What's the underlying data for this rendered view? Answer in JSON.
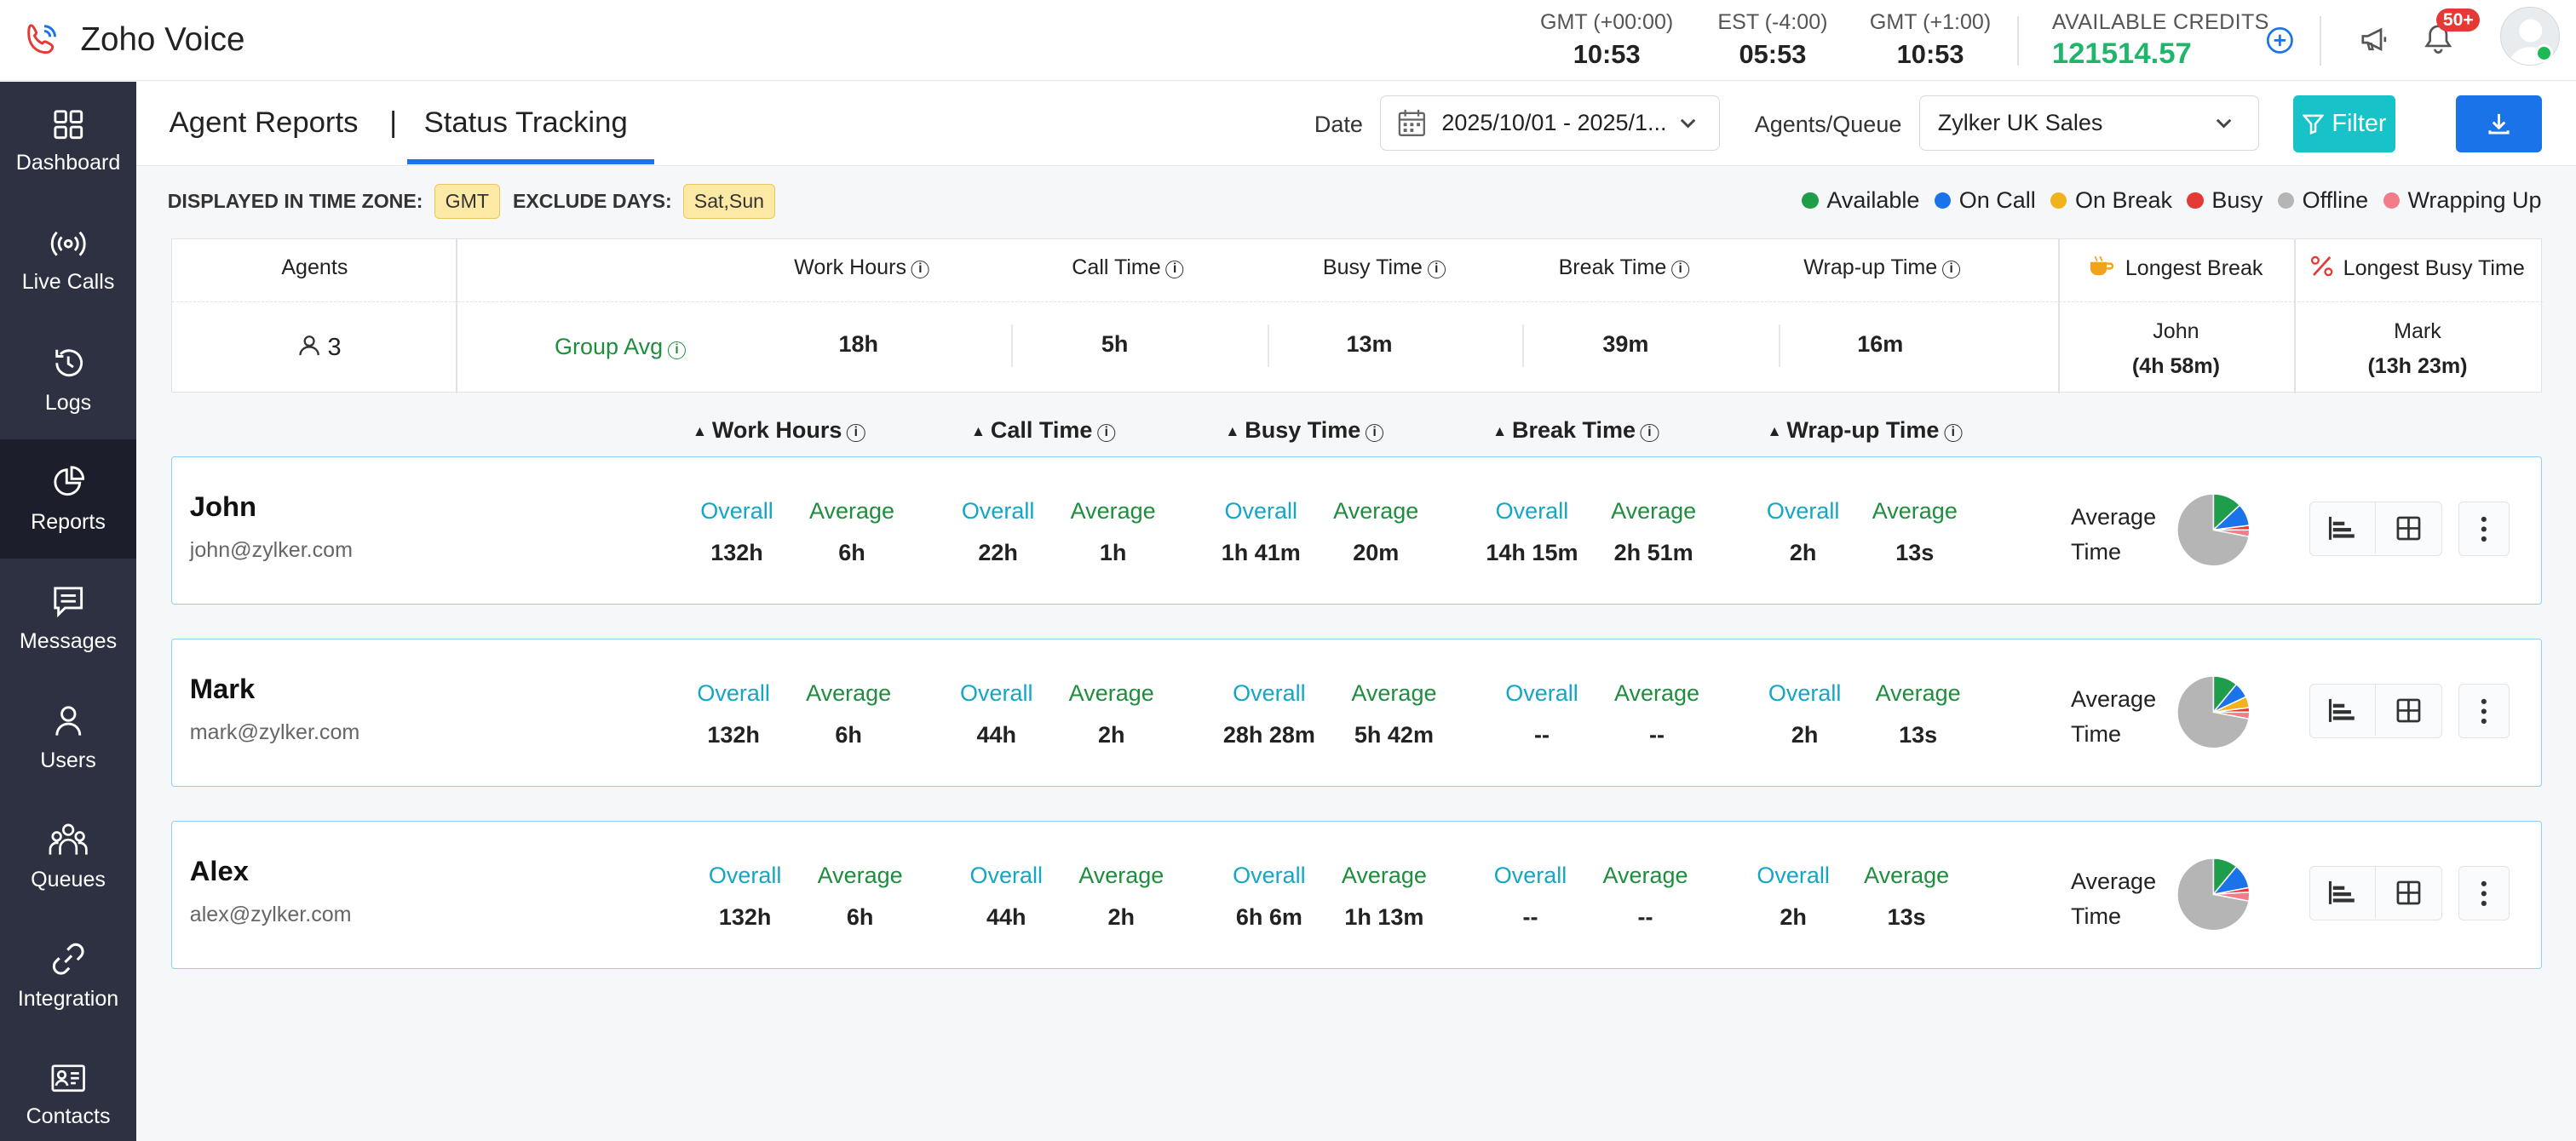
{
  "app": {
    "title": "Zoho Voice"
  },
  "clocks": [
    {
      "zone": "GMT (+00:00)",
      "time": "10:53"
    },
    {
      "zone": "EST (-4:00)",
      "time": "05:53"
    },
    {
      "zone": "GMT (+1:00)",
      "time": "10:53"
    }
  ],
  "credits": {
    "label": "AVAILABLE CREDITS",
    "value": "121514.57"
  },
  "notifications": {
    "badge": "50+"
  },
  "sidebar": {
    "items": [
      {
        "label": "Dashboard",
        "icon": "grid-icon"
      },
      {
        "label": "Live Calls",
        "icon": "broadcast-icon"
      },
      {
        "label": "Logs",
        "icon": "history-icon"
      },
      {
        "label": "Reports",
        "icon": "pie-chart-icon",
        "active": true
      },
      {
        "label": "Messages",
        "icon": "message-icon"
      },
      {
        "label": "Users",
        "icon": "user-icon"
      },
      {
        "label": "Queues",
        "icon": "queue-icon"
      },
      {
        "label": "Integration",
        "icon": "link-icon"
      },
      {
        "label": "Contacts",
        "icon": "contact-card-icon"
      }
    ]
  },
  "header": {
    "tab_reports": "Agent Reports",
    "separator": "|",
    "tab_active": "Status Tracking"
  },
  "filters": {
    "date_label": "Date",
    "date_value": "2025/10/01 - 2025/1...",
    "agents_label": "Agents/Queue",
    "agents_value": "Zylker UK Sales",
    "filter_label": "Filter"
  },
  "timezone": {
    "label": "DISPLAYED IN TIME ZONE:",
    "value": "GMT",
    "exclude_label": "EXCLUDE DAYS:",
    "exclude_value": "Sat,Sun"
  },
  "legend": [
    {
      "label": "Available",
      "color": "#1e9e4a"
    },
    {
      "label": "On Call",
      "color": "#1a73e8"
    },
    {
      "label": "On Break",
      "color": "#f2b21c"
    },
    {
      "label": "Busy",
      "color": "#e53935"
    },
    {
      "label": "Offline",
      "color": "#b5b5b5"
    },
    {
      "label": "Wrapping Up",
      "color": "#f27c8a"
    }
  ],
  "summary": {
    "agents_header": "Agents",
    "agents_count": "3",
    "group_avg": "Group Avg",
    "headers": [
      "Work Hours",
      "Call Time",
      "Busy Time",
      "Break Time",
      "Wrap-up Time"
    ],
    "values": [
      "18h",
      "5h",
      "13m",
      "39m",
      "16m"
    ],
    "longest_break_header": "Longest Break",
    "longest_break_name": "John",
    "longest_break_value": "(4h 58m)",
    "longest_busy_header": "Longest Busy Time",
    "longest_busy_name": "Mark",
    "longest_busy_value": "(13h 23m)"
  },
  "columns": [
    "Work Hours",
    "Call Time",
    "Busy Time",
    "Break Time",
    "Wrap-up Time"
  ],
  "labels": {
    "overall": "Overall",
    "average": "Average",
    "average_time_1": "Average",
    "average_time_2": "Time"
  },
  "agents": [
    {
      "name": "John",
      "email": "john@zylker.com",
      "values": [
        [
          "132h",
          "6h"
        ],
        [
          "22h",
          "1h"
        ],
        [
          "1h 41m",
          "20m"
        ],
        [
          "14h 15m",
          "2h 51m"
        ],
        [
          "2h",
          "13s"
        ]
      ],
      "pie": [
        {
          "status": "Available",
          "share": 0.13
        },
        {
          "status": "On Call",
          "share": 0.1
        },
        {
          "status": "Busy",
          "share": 0.02
        },
        {
          "status": "Wrapping Up",
          "share": 0.03
        },
        {
          "status": "Offline",
          "share": 0.72
        }
      ]
    },
    {
      "name": "Mark",
      "email": "mark@zylker.com",
      "values": [
        [
          "132h",
          "6h"
        ],
        [
          "44h",
          "2h"
        ],
        [
          "28h 28m",
          "5h 42m"
        ],
        [
          "--",
          "--"
        ],
        [
          "2h",
          "13s"
        ]
      ],
      "pie": [
        {
          "status": "Available",
          "share": 0.11
        },
        {
          "status": "On Call",
          "share": 0.07
        },
        {
          "status": "On Break",
          "share": 0.05
        },
        {
          "status": "Busy",
          "share": 0.02
        },
        {
          "status": "Wrapping Up",
          "share": 0.03
        },
        {
          "status": "Offline",
          "share": 0.72
        }
      ]
    },
    {
      "name": "Alex",
      "email": "alex@zylker.com",
      "values": [
        [
          "132h",
          "6h"
        ],
        [
          "44h",
          "2h"
        ],
        [
          "6h 6m",
          "1h 13m"
        ],
        [
          "--",
          "--"
        ],
        [
          "2h",
          "13s"
        ]
      ],
      "pie": [
        {
          "status": "Available",
          "share": 0.11
        },
        {
          "status": "On Call",
          "share": 0.11
        },
        {
          "status": "Busy",
          "share": 0.02
        },
        {
          "status": "Wrapping Up",
          "share": 0.04
        },
        {
          "status": "Offline",
          "share": 0.72
        }
      ]
    }
  ]
}
